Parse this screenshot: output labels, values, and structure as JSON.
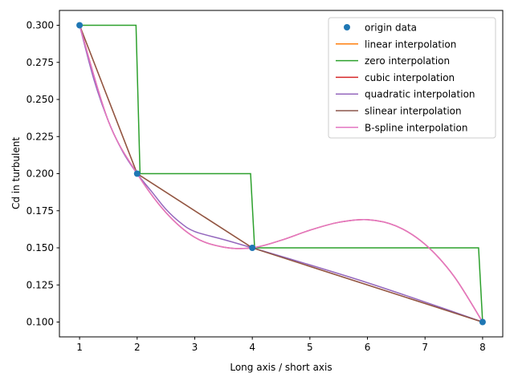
{
  "chart_data": {
    "type": "line",
    "xlabel": "Long axis / short axis",
    "ylabel": "Cd in turbulent",
    "xlim": [
      0.65,
      8.35
    ],
    "ylim": [
      0.09,
      0.31
    ],
    "xticks": [
      1,
      2,
      3,
      4,
      5,
      6,
      7,
      8
    ],
    "yticks": [
      0.1,
      0.125,
      0.15,
      0.175,
      0.2,
      0.225,
      0.25,
      0.275,
      0.3
    ],
    "xtick_labels": [
      "1",
      "2",
      "3",
      "4",
      "5",
      "6",
      "7",
      "8"
    ],
    "ytick_labels": [
      "0.100",
      "0.125",
      "0.150",
      "0.175",
      "0.200",
      "0.225",
      "0.250",
      "0.275",
      "0.300"
    ],
    "grid": false,
    "legend_position": "top-right",
    "series": [
      {
        "name": "origin data",
        "kind": "markers",
        "color": "#1f77b4",
        "x": [
          1,
          2,
          4,
          8
        ],
        "y": [
          0.3,
          0.2,
          0.15,
          0.1
        ]
      },
      {
        "name": "linear interpolation",
        "kind": "line",
        "color": "#ff7f0e",
        "x": [
          1,
          2,
          4,
          8
        ],
        "y": [
          0.3,
          0.2,
          0.15,
          0.1
        ]
      },
      {
        "name": "zero interpolation",
        "kind": "line",
        "color": "#2ca02c",
        "x": [
          1,
          1.98,
          2.05,
          3.97,
          4.04,
          7.93,
          8.0
        ],
        "y": [
          0.3,
          0.3,
          0.2,
          0.2,
          0.15,
          0.15,
          0.1
        ]
      },
      {
        "name": "cubic interpolation",
        "kind": "line",
        "color": "#d62728",
        "x": [
          1,
          1.5,
          2,
          2.5,
          3,
          3.5,
          4,
          4.5,
          5,
          5.5,
          6,
          6.5,
          7,
          7.5,
          8
        ],
        "y": [
          0.3,
          0.2354,
          0.2,
          0.1738,
          0.1571,
          0.1505,
          0.15,
          0.1551,
          0.1619,
          0.1672,
          0.169,
          0.1647,
          0.1524,
          0.131,
          0.1
        ]
      },
      {
        "name": "quadratic interpolation",
        "kind": "line",
        "color": "#9467bd",
        "x": [
          1,
          1.25,
          1.5,
          1.75,
          2,
          2.25,
          2.5,
          2.75,
          3,
          3.5,
          4,
          5,
          6,
          7,
          8
        ],
        "y": [
          0.3,
          0.2633,
          0.2354,
          0.2148,
          0.2,
          0.188,
          0.176,
          0.167,
          0.161,
          0.1556,
          0.15,
          0.1385,
          0.1265,
          0.1135,
          0.1
        ]
      },
      {
        "name": "slinear interpolation",
        "kind": "line",
        "color": "#8c564b",
        "x": [
          1,
          2,
          4,
          8
        ],
        "y": [
          0.3,
          0.2,
          0.15,
          0.1
        ]
      },
      {
        "name": "B-spline interpolation",
        "kind": "line",
        "color": "#e377c2",
        "x": [
          1,
          1.5,
          2,
          2.5,
          3,
          3.5,
          4,
          4.5,
          5,
          5.5,
          6,
          6.5,
          7,
          7.5,
          8
        ],
        "y": [
          0.3,
          0.2354,
          0.2,
          0.1738,
          0.1571,
          0.1505,
          0.15,
          0.1551,
          0.1619,
          0.1672,
          0.169,
          0.1647,
          0.1524,
          0.131,
          0.1
        ]
      }
    ]
  }
}
